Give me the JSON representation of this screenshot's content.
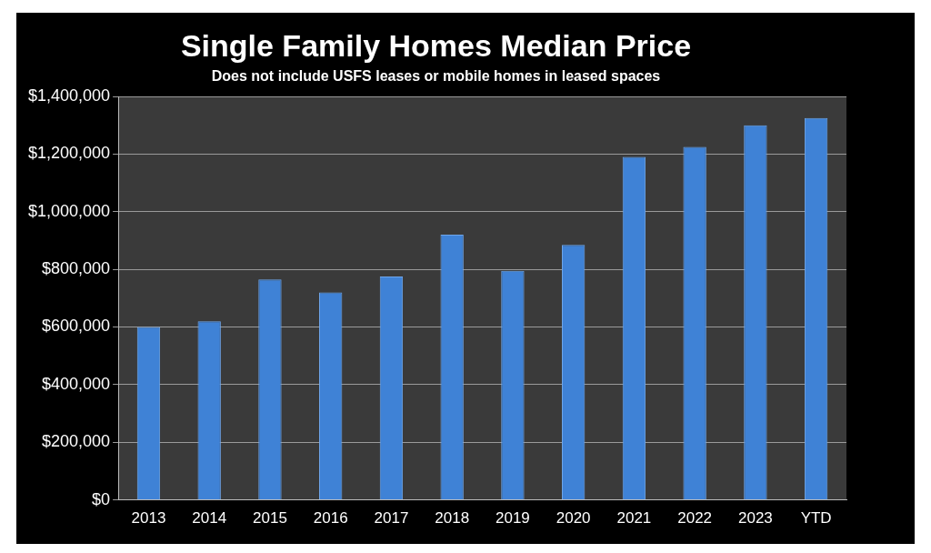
{
  "chart_data": {
    "type": "bar",
    "title": "Single Family Homes Median Price",
    "subtitle": "Does not include USFS leases or mobile homes in leased spaces",
    "categories": [
      "2013",
      "2014",
      "2015",
      "2016",
      "2017",
      "2018",
      "2019",
      "2020",
      "2021",
      "2022",
      "2023",
      "YTD"
    ],
    "values": [
      600000,
      620000,
      765000,
      720000,
      775000,
      920000,
      795000,
      885000,
      1190000,
      1225000,
      1300000,
      1325000
    ],
    "color": "#3f82d6",
    "ylim": [
      0,
      1400000
    ],
    "yticks": [
      {
        "value": 0,
        "label": "$0"
      },
      {
        "value": 200000,
        "label": "$200,000"
      },
      {
        "value": 400000,
        "label": "$400,000"
      },
      {
        "value": 600000,
        "label": "$600,000"
      },
      {
        "value": 800000,
        "label": "$800,000"
      },
      {
        "value": 1000000,
        "label": "$1,000,000"
      },
      {
        "value": 1200000,
        "label": "$1,200,000"
      },
      {
        "value": 1400000,
        "label": "$1,400,000"
      }
    ],
    "grid": true
  }
}
